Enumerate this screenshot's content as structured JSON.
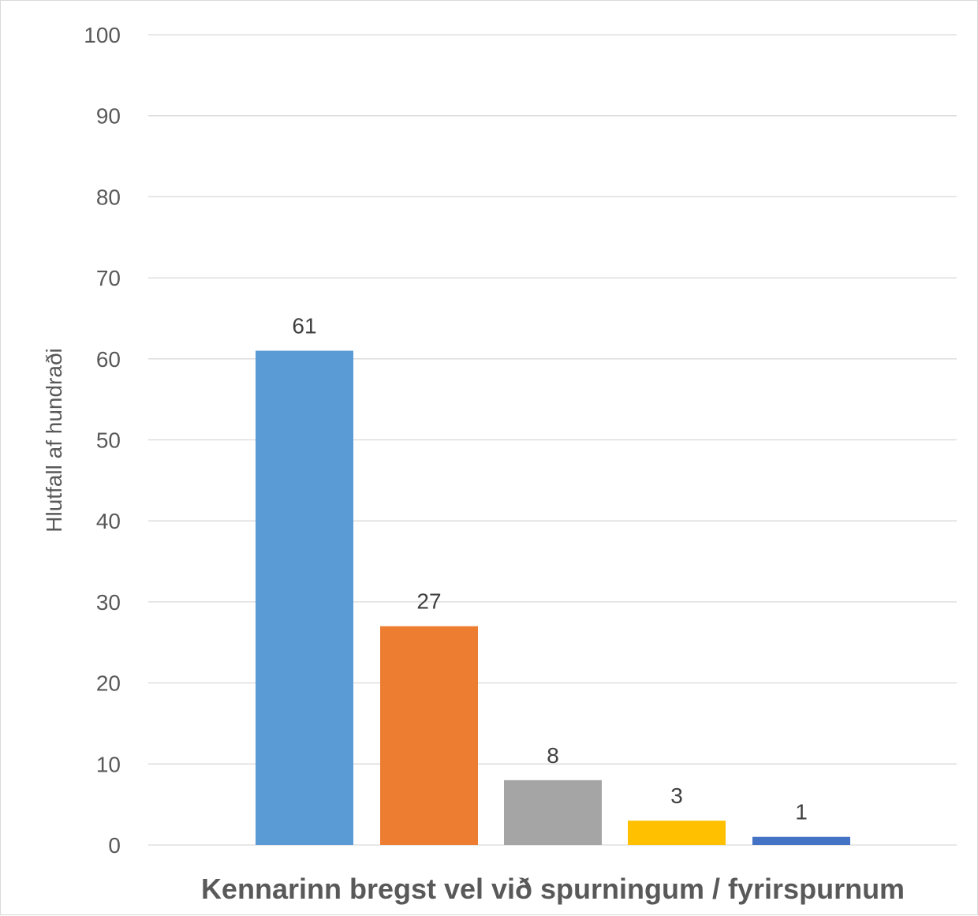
{
  "chart_data": {
    "type": "bar",
    "title": "",
    "categories": [
      "",
      "",
      "",
      "",
      ""
    ],
    "values": [
      61,
      27,
      8,
      3,
      1
    ],
    "data_labels": [
      "61",
      "27",
      "8",
      "3",
      "1"
    ],
    "colors": [
      "#5b9bd5",
      "#ed7d31",
      "#a5a5a5",
      "#ffc000",
      "#4472c4"
    ],
    "xlabel": "Kennarinn bregst vel við spurningum / fyrirspurnum",
    "ylabel": "Hlutfall af hundraði",
    "ylim": [
      0,
      100
    ],
    "yticks": [
      0,
      10,
      20,
      30,
      40,
      50,
      60,
      70,
      80,
      90,
      100
    ],
    "grid": true,
    "legend": "none"
  }
}
